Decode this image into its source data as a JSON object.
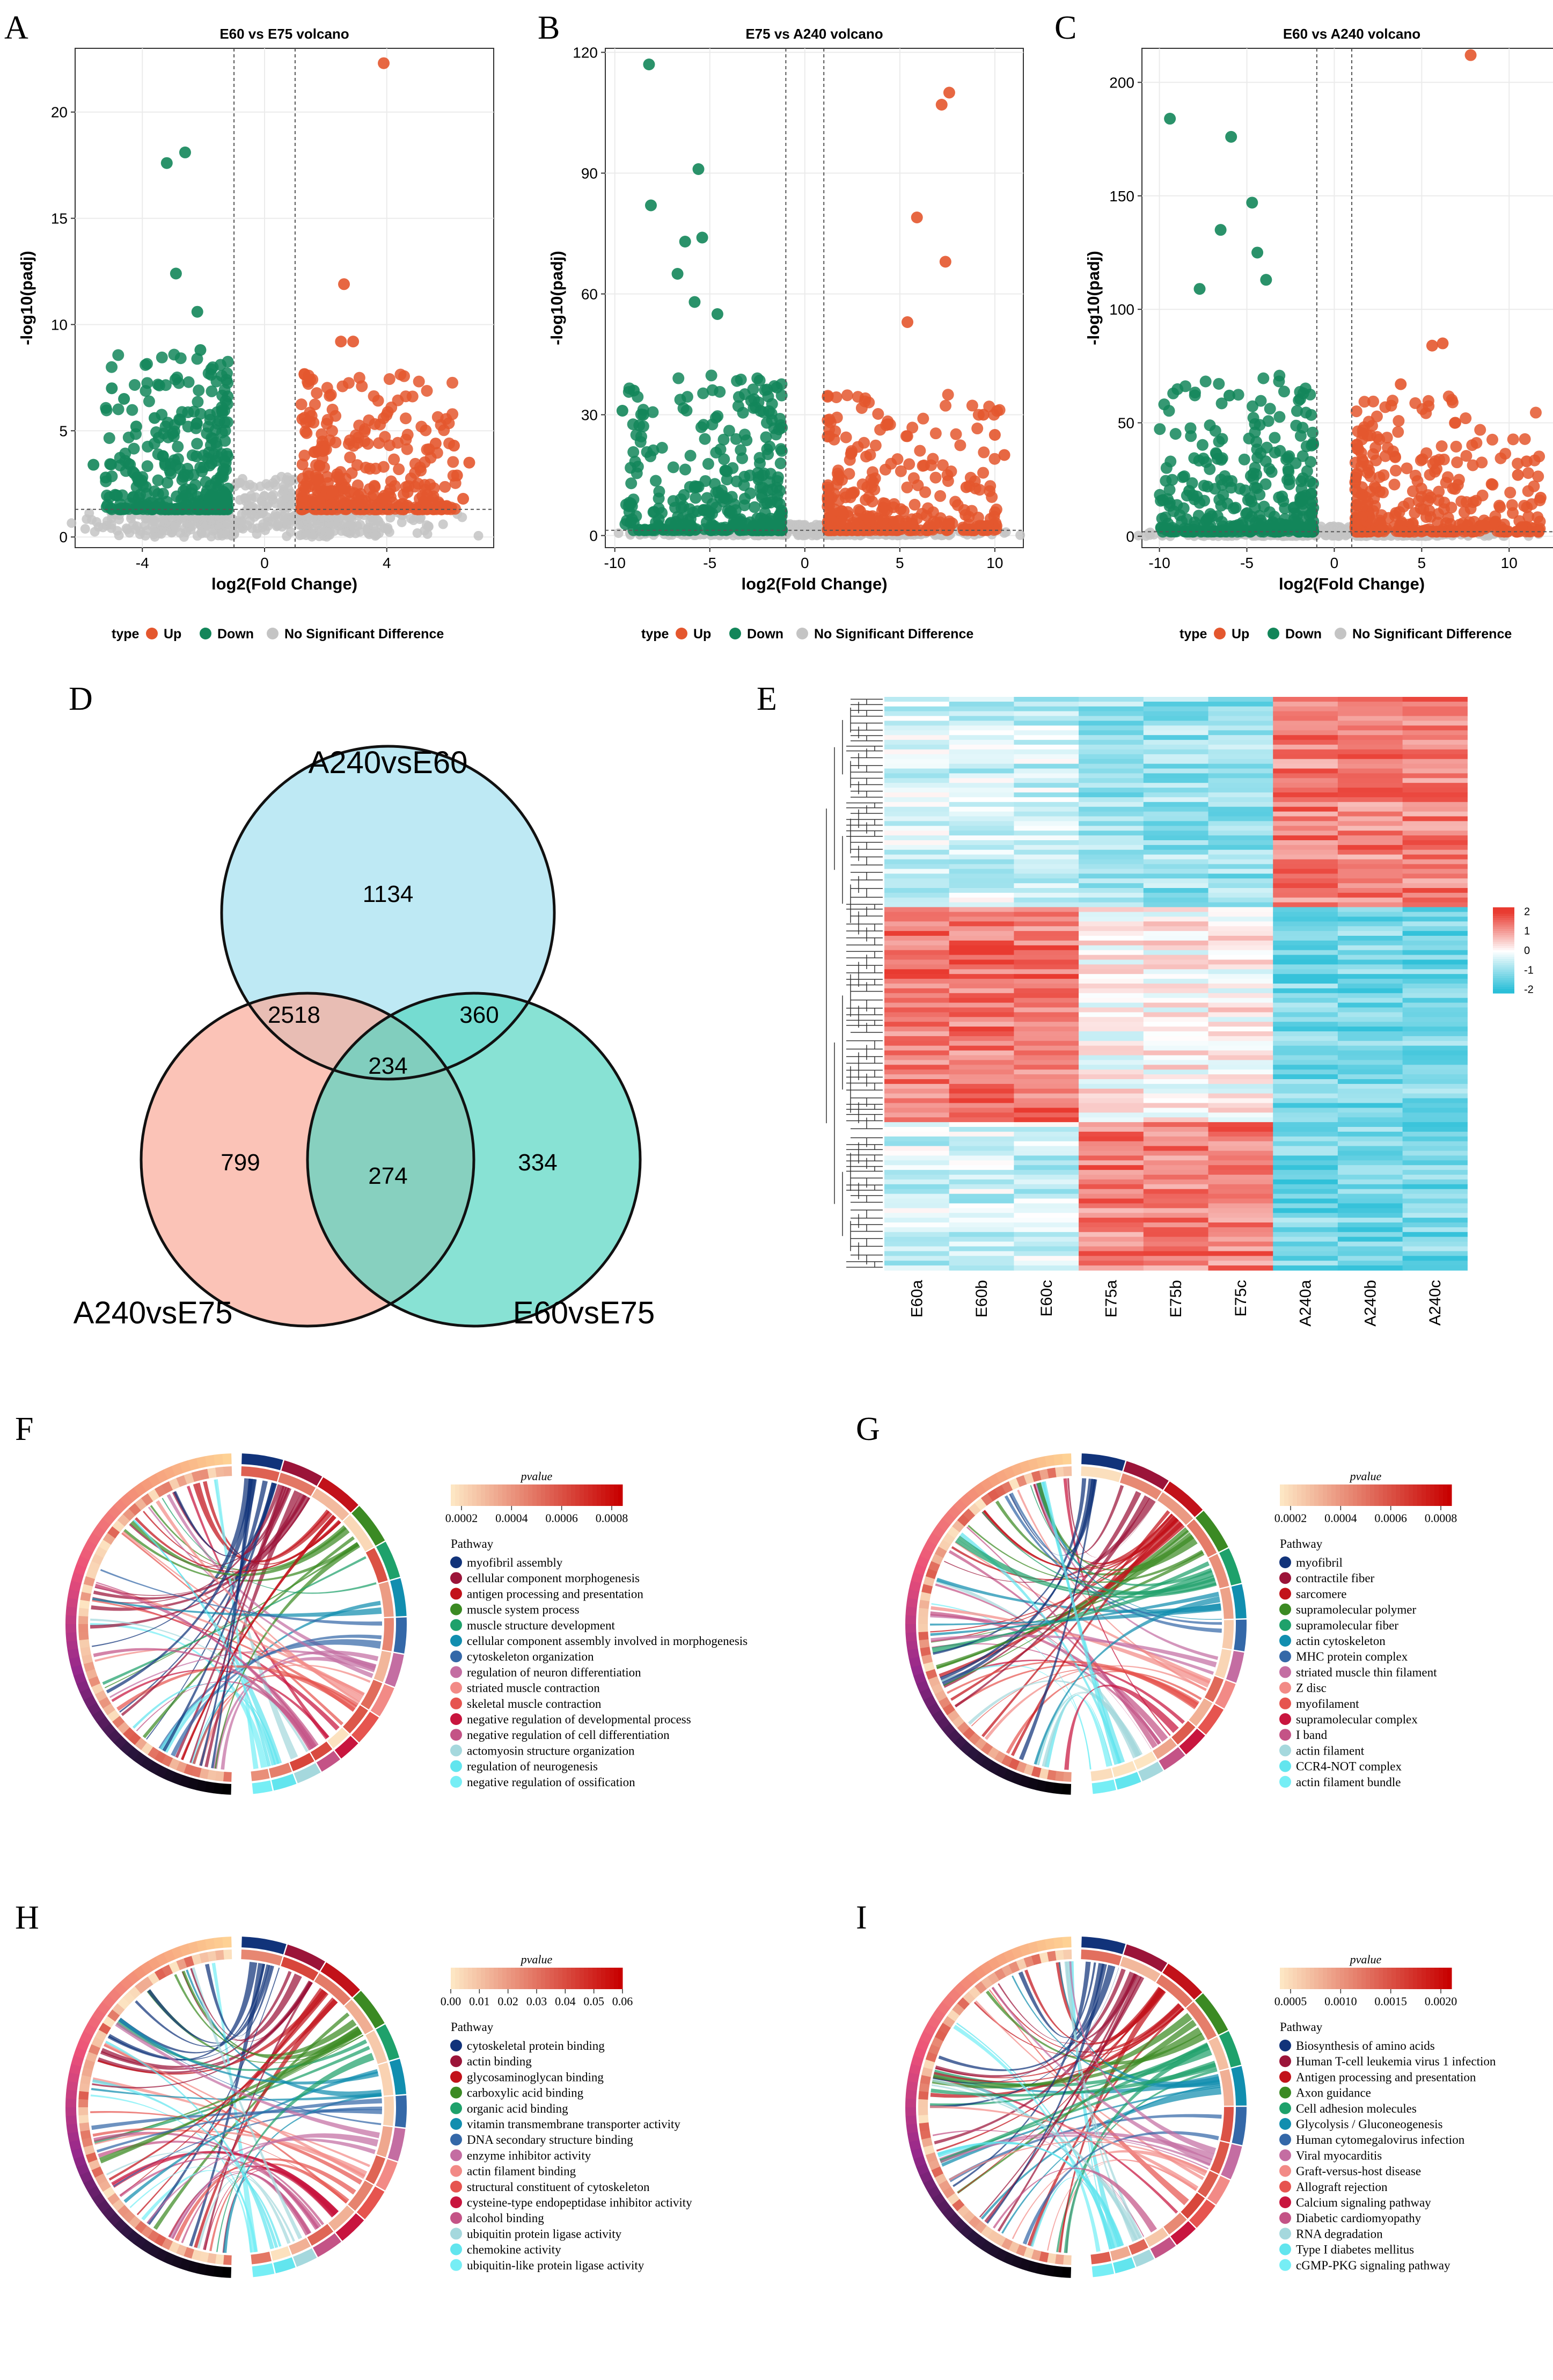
{
  "panel_labels": [
    "A",
    "B",
    "C",
    "D",
    "E",
    "F",
    "G",
    "H",
    "I"
  ],
  "legend_common": {
    "type_label": "type",
    "up": "Up",
    "down": "Down",
    "nsd": "No Significant Difference"
  },
  "colors": {
    "up": "#e4572e",
    "down": "#13865a",
    "nsd": "#c4c4c4",
    "venn_a": "#a8e2f0",
    "venn_b": "#f9aa98",
    "venn_c": "#55d5c2"
  },
  "chart_data": [
    {
      "type": "scatter",
      "panel": "A",
      "title": "E60 vs E75 volcano",
      "xlabel": "log2(Fold Change)",
      "ylabel": "-log10(padj)",
      "xlim": [
        -6.2,
        7.5
      ],
      "ylim": [
        -0.5,
        23
      ],
      "xticks": [
        -4,
        0,
        4
      ],
      "xtick_labels": [
        "-4",
        "0",
        "4"
      ],
      "yticks": [
        0,
        5,
        10,
        15,
        20
      ],
      "ytick_labels": [
        "0",
        "5",
        "10",
        "15",
        "20"
      ],
      "vlines": [
        -1,
        1
      ],
      "hline": 1.3,
      "series": [
        {
          "name": "Down",
          "points": [
            [
              -3.2,
              17.6
            ],
            [
              -2.6,
              18.1
            ],
            [
              -2.9,
              12.4
            ],
            [
              -2.2,
              10.6
            ],
            [
              -2.1,
              8.8
            ],
            [
              -5.0,
              7.0
            ],
            [
              -4.6,
              6.5
            ],
            [
              -5.6,
              3.4
            ],
            [
              -5.2,
              2.8
            ],
            [
              -4.2,
              5.2
            ],
            [
              -3.6,
              5.6
            ]
          ]
        },
        {
          "name": "Up",
          "points": [
            [
              3.9,
              22.3
            ],
            [
              2.6,
              11.9
            ],
            [
              2.5,
              9.2
            ],
            [
              2.9,
              9.2
            ],
            [
              6.2,
              4.3
            ],
            [
              5.6,
              4.4
            ],
            [
              6.7,
              3.5
            ],
            [
              6.3,
              2.9
            ],
            [
              6.5,
              1.8
            ],
            [
              5.0,
              1.3
            ]
          ]
        }
      ]
    },
    {
      "type": "scatter",
      "panel": "B",
      "title": "E75 vs A240 volcano",
      "xlabel": "log2(Fold Change)",
      "ylabel": "-log10(padj)",
      "xlim": [
        -10.5,
        11.5
      ],
      "ylim": [
        -3,
        121
      ],
      "xticks": [
        -10,
        -5,
        0,
        5,
        10
      ],
      "xtick_labels": [
        "-10",
        "-5",
        "0",
        "5",
        "10"
      ],
      "yticks": [
        0,
        30,
        60,
        90,
        120
      ],
      "ytick_labels": [
        "0",
        "30",
        "60",
        "90",
        "120"
      ],
      "vlines": [
        -1,
        1
      ],
      "hline": 1.3,
      "series": [
        {
          "name": "Down",
          "points": [
            [
              -8.2,
              117
            ],
            [
              -5.6,
              91
            ],
            [
              -8.1,
              82
            ],
            [
              -6.3,
              73
            ],
            [
              -6.7,
              65
            ],
            [
              -5.4,
              74
            ],
            [
              -9.0,
              36
            ],
            [
              -9.6,
              31
            ],
            [
              -8.5,
              30
            ],
            [
              -5.8,
              58
            ],
            [
              -4.6,
              55
            ]
          ]
        },
        {
          "name": "Up",
          "points": [
            [
              7.6,
              110
            ],
            [
              7.2,
              107
            ],
            [
              5.9,
              79
            ],
            [
              7.4,
              68
            ],
            [
              5.4,
              53
            ],
            [
              10.0,
              25
            ],
            [
              9.4,
              30
            ],
            [
              10.5,
              20
            ],
            [
              8.5,
              12
            ]
          ]
        }
      ]
    },
    {
      "type": "scatter",
      "panel": "C",
      "title": "E60 vs A240 volcano",
      "xlabel": "log2(Fold Change)",
      "ylabel": "-log10(padj)",
      "xlim": [
        -11,
        13
      ],
      "ylim": [
        -5,
        215
      ],
      "xticks": [
        -10,
        -5,
        0,
        5,
        10
      ],
      "xtick_labels": [
        "-10",
        "-5",
        "0",
        "5",
        "10"
      ],
      "yticks": [
        0,
        50,
        100,
        150,
        200
      ],
      "ytick_labels": [
        "0",
        "50",
        "100",
        "150",
        "200"
      ],
      "vlines": [
        -1,
        1
      ],
      "hline": 2,
      "series": [
        {
          "name": "Down",
          "points": [
            [
              -9.4,
              184
            ],
            [
              -5.9,
              176
            ],
            [
              -4.7,
              147
            ],
            [
              -6.5,
              135
            ],
            [
              -7.7,
              109
            ],
            [
              -4.4,
              125
            ],
            [
              -3.9,
              113
            ],
            [
              -9.8,
              16
            ],
            [
              -8.3,
              20
            ],
            [
              -6.0,
              62
            ]
          ]
        },
        {
          "name": "Up",
          "points": [
            [
              7.8,
              212
            ],
            [
              6.2,
              85
            ],
            [
              5.6,
              84
            ],
            [
              3.8,
              67
            ],
            [
              11.0,
              33
            ],
            [
              10.5,
              27
            ],
            [
              11.8,
              17
            ],
            [
              9.0,
              23
            ]
          ]
        }
      ]
    },
    {
      "type": "venn",
      "panel": "D",
      "sets": [
        "A240vsE60",
        "A240vsE75",
        "E60vsE75"
      ],
      "regions": {
        "A_only": 1134,
        "B_only": 799,
        "C_only": 334,
        "AB": 2518,
        "AC": 360,
        "BC": 274,
        "ABC": 234
      }
    },
    {
      "type": "heatmap",
      "panel": "E",
      "columns": [
        "E60a",
        "E60b",
        "E60c",
        "E75a",
        "E75b",
        "E75c",
        "A240a",
        "A240b",
        "A240c"
      ],
      "scale_ticks": [
        2,
        1,
        0,
        -1,
        -2
      ],
      "scale_labels": [
        "2",
        "1",
        "0",
        "-1",
        "-2"
      ]
    },
    {
      "type": "chord",
      "panel": "F",
      "scale_title": "pvalue",
      "scale_ticks": [
        0.0002,
        0.0004,
        0.0006,
        0.0008
      ],
      "scale_labels": [
        "0.0002",
        "0.0004",
        "0.0006",
        "0.0008"
      ],
      "legend_title": "Pathway",
      "pathways": [
        "myofibril assembly",
        "cellular component morphogenesis",
        "antigen processing and presentation",
        "muscle system process",
        "muscle structure development",
        "cellular component assembly involved in morphogenesis",
        "cytoskeleton organization",
        "regulation of neuron differentiation",
        "striated muscle contraction",
        "skeletal muscle contraction",
        "negative regulation of developmental process",
        "negative regulation of cell differentiation",
        "actomyosin structure organization",
        "regulation of neurogenesis",
        "negative regulation of ossification"
      ]
    },
    {
      "type": "chord",
      "panel": "G",
      "scale_title": "pvalue",
      "scale_ticks": [
        0.0002,
        0.0004,
        0.0006,
        0.0008
      ],
      "scale_labels": [
        "0.0002",
        "0.0004",
        "0.0006",
        "0.0008"
      ],
      "legend_title": "Pathway",
      "pathways": [
        "myofibril",
        "contractile fiber",
        "sarcomere",
        "supramolecular polymer",
        "supramolecular fiber",
        "actin cytoskeleton",
        "MHC protein complex",
        "striated muscle thin filament",
        "Z disc",
        "myofilament",
        "supramolecular complex",
        "I band",
        "actin filament",
        "CCR4-NOT complex",
        "actin filament bundle"
      ]
    },
    {
      "type": "chord",
      "panel": "H",
      "scale_title": "pvalue",
      "scale_ticks": [
        0.0,
        0.01,
        0.02,
        0.03,
        0.04,
        0.05,
        0.06
      ],
      "scale_labels": [
        "0.00",
        "0.01",
        "0.02",
        "0.03",
        "0.04",
        "0.05",
        "0.06"
      ],
      "legend_title": "Pathway",
      "pathways": [
        "cytoskeletal protein binding",
        "actin binding",
        "glycosaminoglycan binding",
        "carboxylic acid binding",
        "organic acid binding",
        "vitamin transmembrane transporter activity",
        "DNA secondary structure binding",
        "enzyme inhibitor activity",
        "actin filament binding",
        "structural constituent of cytoskeleton",
        "cysteine-type endopeptidase inhibitor activity",
        "alcohol binding",
        "ubiquitin protein ligase activity",
        "chemokine activity",
        "ubiquitin-like protein ligase activity"
      ]
    },
    {
      "type": "chord",
      "panel": "I",
      "scale_title": "pvalue",
      "scale_ticks": [
        0.0005,
        0.001,
        0.0015,
        0.002
      ],
      "scale_labels": [
        "0.0005",
        "0.0010",
        "0.0015",
        "0.0020"
      ],
      "legend_title": "Pathway",
      "pathways": [
        "Biosynthesis of amino acids",
        "Human T-cell leukemia virus 1 infection",
        "Antigen processing and presentation",
        "Axon guidance",
        "Cell adhesion molecules",
        "Glycolysis / Gluconeogenesis",
        "Human cytomegalovirus infection",
        "Viral myocarditis",
        "Graft-versus-host disease",
        "Allograft rejection",
        "Calcium signaling pathway",
        "Diabetic cardiomyopathy",
        "RNA degradation",
        "Type I diabetes mellitus",
        "cGMP-PKG signaling pathway"
      ]
    }
  ]
}
